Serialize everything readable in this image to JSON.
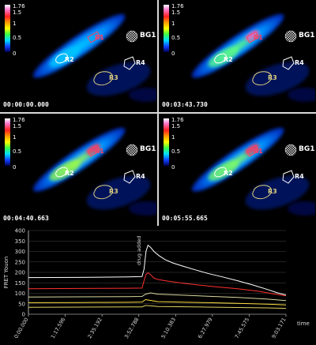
{
  "panels": [
    {
      "timestamp": "00:00:00.000",
      "phase": 0
    },
    {
      "timestamp": "00:03:43.730",
      "phase": 1
    },
    {
      "timestamp": "00:04:40.663",
      "phase": 2
    },
    {
      "timestamp": "00:05:55.665",
      "phase": 3
    }
  ],
  "colorbar": {
    "ticks": [
      "1.76",
      "1.5",
      "1",
      "0.5",
      "0"
    ]
  },
  "rois": {
    "r1": "R1",
    "r2": "R2",
    "r3": "R3",
    "r4": "R4",
    "bg": "BG1"
  },
  "colors": {
    "r1": "#ff4060",
    "r2": "#ffffff",
    "r3": "#e0d080",
    "r4": "#ffffff"
  },
  "chart_data": {
    "type": "line",
    "ylabel": "FRET Youon",
    "xlabel": "time",
    "ylim": [
      0,
      400
    ],
    "yticks": [
      0,
      50,
      100,
      150,
      200,
      250,
      300,
      350,
      400
    ],
    "xticks": [
      "0:00.000",
      "1:17.596",
      "2:35.192",
      "3:52.788",
      "5:10.383",
      "6:27.979",
      "7:45.575",
      "9:03.171"
    ],
    "annotation": {
      "text": "drug added",
      "x": 230
    },
    "series": [
      {
        "color": "#ffffff",
        "x": [
          0,
          100,
          200,
          228,
          232,
          236,
          240,
          245,
          252,
          262,
          275,
          290,
          310,
          335,
          360,
          390,
          420,
          450,
          480,
          500,
          517
        ],
        "values": [
          175,
          176,
          178,
          180,
          215,
          300,
          330,
          320,
          300,
          280,
          260,
          245,
          230,
          212,
          195,
          178,
          160,
          140,
          118,
          102,
          92
        ]
      },
      {
        "color": "#ff3030",
        "x": [
          0,
          100,
          200,
          228,
          232,
          236,
          240,
          245,
          252,
          262,
          280,
          310,
          340,
          380,
          420,
          460,
          490,
          517
        ],
        "values": [
          122,
          123,
          124,
          125,
          160,
          190,
          198,
          190,
          172,
          165,
          158,
          148,
          140,
          130,
          122,
          110,
          98,
          88
        ]
      },
      {
        "color": "#d8d8a0",
        "x": [
          0,
          100,
          200,
          228,
          235,
          245,
          260,
          300,
          360,
          420,
          480,
          517
        ],
        "values": [
          82,
          83,
          84,
          85,
          96,
          102,
          96,
          92,
          86,
          80,
          72,
          65
        ]
      },
      {
        "color": "#ffe040",
        "x": [
          0,
          100,
          200,
          228,
          235,
          245,
          260,
          300,
          360,
          420,
          480,
          517
        ],
        "values": [
          55,
          56,
          57,
          58,
          70,
          66,
          60,
          58,
          55,
          52,
          48,
          44
        ]
      },
      {
        "color": "#e0d060",
        "x": [
          0,
          100,
          200,
          228,
          235,
          245,
          260,
          300,
          360,
          420,
          480,
          517
        ],
        "values": [
          33,
          34,
          35,
          35,
          42,
          40,
          37,
          36,
          34,
          32,
          30,
          28
        ]
      }
    ]
  }
}
